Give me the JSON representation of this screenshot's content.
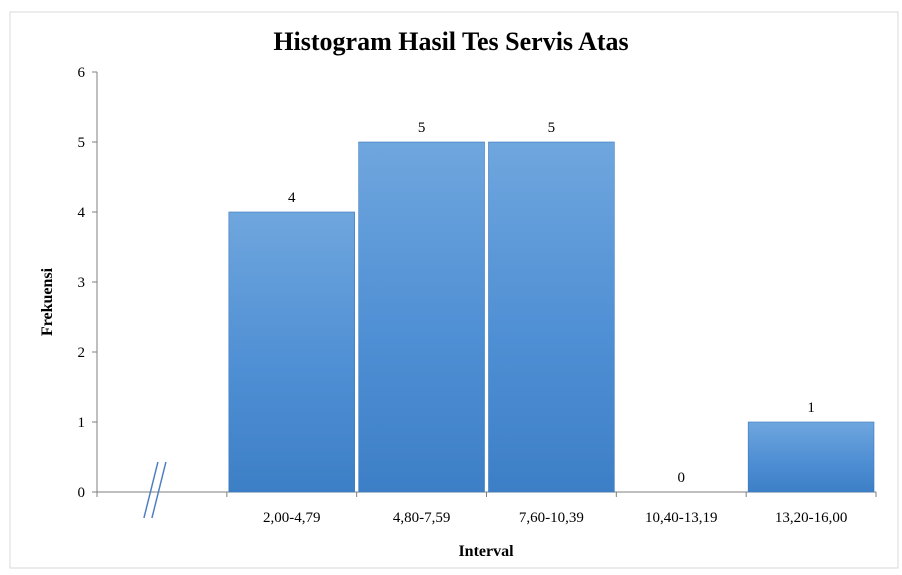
{
  "chart_data": {
    "type": "bar",
    "title": "Histogram Hasil Tes Servis Atas",
    "xlabel": "Interval",
    "ylabel": "Frekuensi",
    "categories": [
      "",
      "2,00-4,79",
      "4,80-7,59",
      "7,60-10,39",
      "10,40-13,19",
      "13,20-16,00"
    ],
    "values": [
      null,
      4,
      5,
      5,
      0,
      1
    ],
    "data_labels": [
      "",
      "4",
      "5",
      "5",
      "0",
      "1"
    ],
    "y_ticks": [
      "0",
      "1",
      "2",
      "3",
      "4",
      "5",
      "6"
    ],
    "ylim": [
      0,
      6
    ],
    "grid": false,
    "axis_break_on_x": true,
    "bar_color": "#4f8fd4",
    "bar_color_light": "#6fa6de",
    "bar_color_dark": "#3d7fc6",
    "legend": "none"
  }
}
